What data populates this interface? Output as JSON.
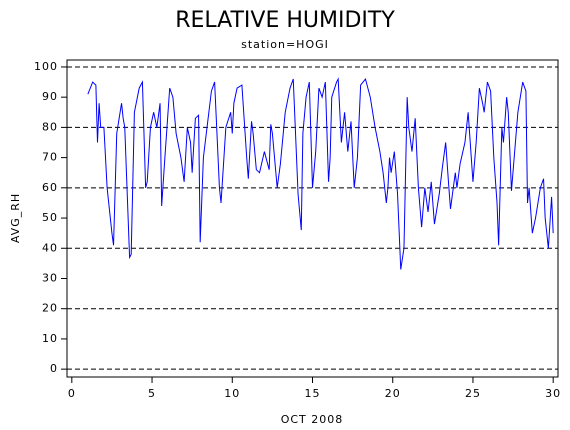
{
  "chart_data": {
    "type": "line",
    "title": "RELATIVE HUMIDITY",
    "subtitle": "station=HOGI",
    "x_label": "OCT 2008",
    "y_label": "AVG_RH",
    "xlim": [
      -0.3,
      30.3
    ],
    "ylim": [
      -2.6,
      102.3
    ],
    "xticks": [
      0,
      5,
      10,
      15,
      20,
      25,
      30
    ],
    "yticks": [
      0,
      10,
      20,
      30,
      40,
      50,
      60,
      70,
      80,
      90,
      100
    ],
    "grid_lines": [
      0,
      20,
      40,
      60,
      80,
      100
    ],
    "series": [
      {
        "name": "AVG_RH",
        "color": "#0000ff",
        "x": [
          1.0,
          1.3,
          1.5,
          1.6,
          1.7,
          1.8,
          2.0,
          2.2,
          2.5,
          2.6,
          2.8,
          3.1,
          3.2,
          3.3,
          3.6,
          3.7,
          3.9,
          4.2,
          4.4,
          4.6,
          4.7,
          4.9,
          5.1,
          5.3,
          5.5,
          5.6,
          5.8,
          6.1,
          6.3,
          6.5,
          6.8,
          7.0,
          7.2,
          7.4,
          7.5,
          7.7,
          7.9,
          8.0,
          8.2,
          8.7,
          8.9,
          9.2,
          9.3,
          9.6,
          9.9,
          10.0,
          10.1,
          10.3,
          10.6,
          10.9,
          11.0,
          11.2,
          11.3,
          11.5,
          11.7,
          12.0,
          12.3,
          12.4,
          12.5,
          12.8,
          13.0,
          13.3,
          13.6,
          13.8,
          14.1,
          14.3,
          14.4,
          14.6,
          14.8,
          15.0,
          15.2,
          15.4,
          15.6,
          15.8,
          16.0,
          16.1,
          16.2,
          16.5,
          16.6,
          16.8,
          17.0,
          17.2,
          17.4,
          17.6,
          17.8,
          18.0,
          18.3,
          18.6,
          18.9,
          19.2,
          19.4,
          19.6,
          19.7,
          19.8,
          19.9,
          20.1,
          20.3,
          20.5,
          20.7,
          20.9,
          21.0,
          21.2,
          21.4,
          21.6,
          21.8,
          22.0,
          22.2,
          22.4,
          22.6,
          22.9,
          23.1,
          23.3,
          23.5,
          23.6,
          23.9,
          24.0,
          24.2,
          24.5,
          24.7,
          25.0,
          25.2,
          25.4,
          25.6,
          25.7,
          25.9,
          26.1,
          26.3,
          26.5,
          26.6,
          26.8,
          26.9,
          27.1,
          27.2,
          27.4,
          27.6,
          27.8,
          28.1,
          28.3,
          28.4,
          28.5,
          28.7,
          28.9,
          29.2,
          29.4,
          29.5,
          29.7,
          29.9,
          30.0
        ],
        "values": [
          91,
          95,
          94,
          75,
          88,
          80,
          80,
          60,
          45,
          41,
          78,
          88,
          83,
          80,
          37,
          38,
          85,
          93,
          95,
          60,
          62,
          80,
          85,
          80,
          88,
          54,
          70,
          93,
          90,
          78,
          70,
          62,
          80,
          75,
          65,
          83,
          84,
          42,
          70,
          92,
          95,
          60,
          55,
          80,
          85,
          78,
          88,
          93,
          94,
          70,
          63,
          82,
          78,
          66,
          65,
          72,
          66,
          81,
          78,
          60,
          68,
          85,
          93,
          96,
          58,
          46,
          78,
          90,
          95,
          60,
          72,
          93,
          90,
          95,
          62,
          70,
          90,
          95,
          96,
          75,
          85,
          72,
          82,
          60,
          70,
          94,
          96,
          90,
          80,
          72,
          65,
          55,
          60,
          70,
          65,
          72,
          58,
          33,
          40,
          90,
          80,
          72,
          83,
          60,
          47,
          60,
          52,
          62,
          48,
          58,
          67,
          75,
          60,
          53,
          65,
          60,
          68,
          75,
          85,
          62,
          75,
          93,
          88,
          85,
          95,
          92,
          70,
          55,
          41,
          80,
          75,
          90,
          85,
          59,
          72,
          85,
          95,
          92,
          55,
          60,
          45,
          50,
          60,
          63,
          50,
          40,
          57,
          45
        ]
      }
    ]
  }
}
